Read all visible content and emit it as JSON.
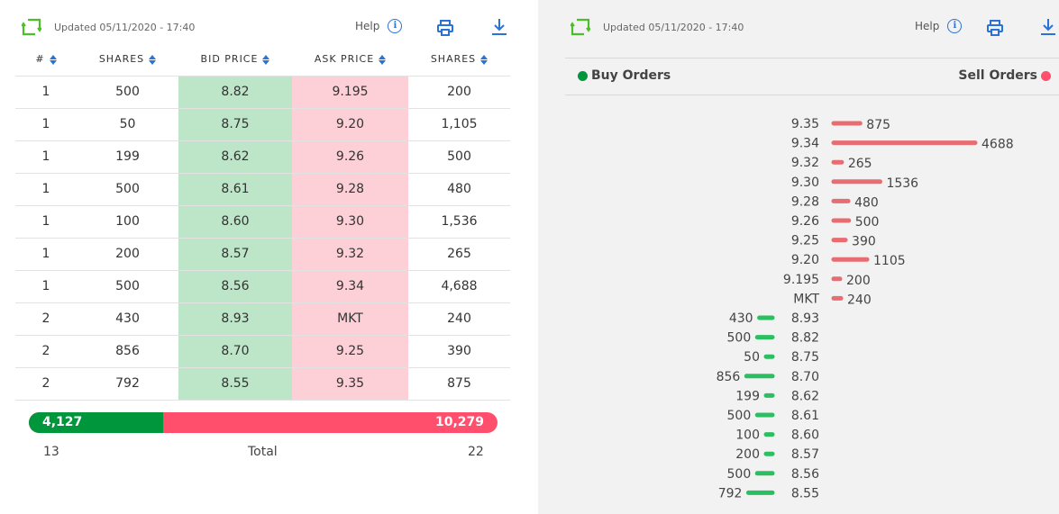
{
  "left": {
    "updated": "Updated 05/11/2020 - 17:40",
    "help_label": "Help",
    "help_glyph": "i",
    "columns": [
      "#",
      "SHARES",
      "BID PRICE",
      "ASK PRICE",
      "SHARES"
    ],
    "rows": [
      {
        "n": "1",
        "bid_shares": "500",
        "bid": "8.82",
        "ask": "9.195",
        "ask_shares": "200"
      },
      {
        "n": "1",
        "bid_shares": "50",
        "bid": "8.75",
        "ask": "9.20",
        "ask_shares": "1,105"
      },
      {
        "n": "1",
        "bid_shares": "199",
        "bid": "8.62",
        "ask": "9.26",
        "ask_shares": "500"
      },
      {
        "n": "1",
        "bid_shares": "500",
        "bid": "8.61",
        "ask": "9.28",
        "ask_shares": "480"
      },
      {
        "n": "1",
        "bid_shares": "100",
        "bid": "8.60",
        "ask": "9.30",
        "ask_shares": "1,536"
      },
      {
        "n": "1",
        "bid_shares": "200",
        "bid": "8.57",
        "ask": "9.32",
        "ask_shares": "265"
      },
      {
        "n": "1",
        "bid_shares": "500",
        "bid": "8.56",
        "ask": "9.34",
        "ask_shares": "4,688"
      },
      {
        "n": "2",
        "bid_shares": "430",
        "bid": "8.93",
        "ask": "MKT",
        "ask_shares": "240"
      },
      {
        "n": "2",
        "bid_shares": "856",
        "bid": "8.70",
        "ask": "9.25",
        "ask_shares": "390"
      },
      {
        "n": "2",
        "bid_shares": "792",
        "bid": "8.55",
        "ask": "9.35",
        "ask_shares": "875"
      }
    ],
    "totals": {
      "buy_total": "4,127",
      "sell_total": "10,279",
      "buy_fraction": 0.2865,
      "buy_count": "13",
      "label": "Total",
      "sell_count": "22"
    }
  },
  "right": {
    "updated": "Updated 05/11/2020 - 17:40",
    "help_label": "Help",
    "help_glyph": "i",
    "buy_label": "Buy Orders",
    "sell_label": "Sell Orders"
  },
  "colors": {
    "buy": "#2bbf62",
    "sell": "#e86d72",
    "buy_dot": "#00963c",
    "sell_dot": "#ff4f6d",
    "accent": "#2a72d8",
    "refresh": "#4cbf28"
  },
  "chart_data": {
    "type": "bar",
    "title": "",
    "orientation": "horizontal",
    "series": [
      {
        "name": "Sell Orders",
        "categories": [
          "9.35",
          "9.34",
          "9.32",
          "9.30",
          "9.28",
          "9.26",
          "9.25",
          "9.20",
          "9.195",
          "MKT"
        ],
        "values": [
          875,
          4688,
          265,
          1536,
          480,
          500,
          390,
          1105,
          200,
          240
        ]
      },
      {
        "name": "Buy Orders",
        "categories": [
          "8.93",
          "8.82",
          "8.75",
          "8.70",
          "8.62",
          "8.61",
          "8.60",
          "8.57",
          "8.56",
          "8.55"
        ],
        "values": [
          430,
          500,
          50,
          856,
          199,
          500,
          100,
          200,
          500,
          792
        ]
      }
    ]
  }
}
